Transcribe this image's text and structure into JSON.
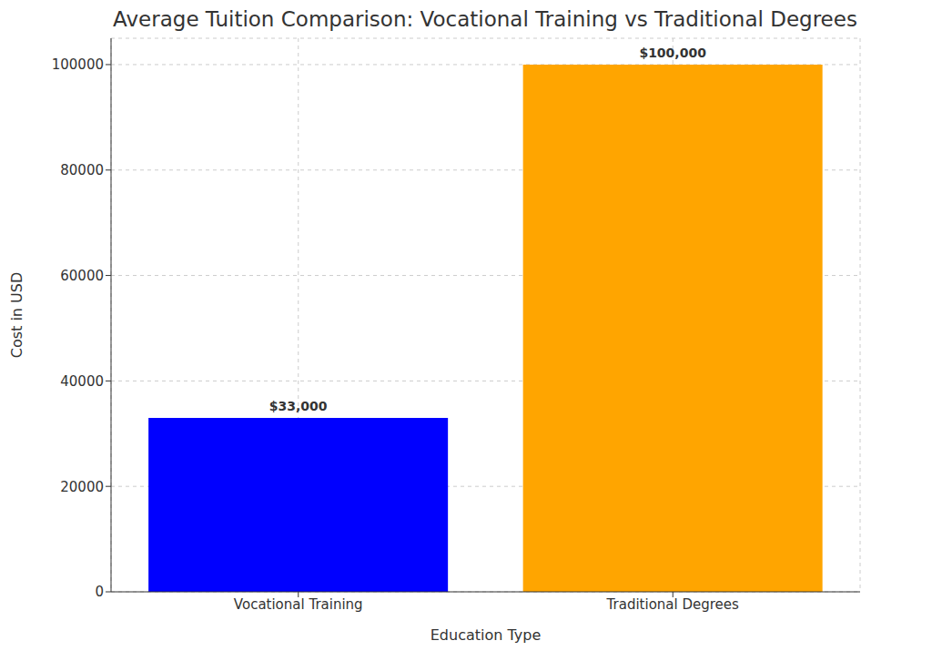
{
  "chart_data": {
    "type": "bar",
    "title": "Average Tuition Comparison: Vocational Training vs Traditional Degrees",
    "x_label": "Education Type",
    "y_label": "Cost in USD",
    "categories": [
      "Vocational Training",
      "Traditional Degrees"
    ],
    "values": [
      33000,
      100000
    ],
    "value_labels": [
      "$33,000",
      "$100,000"
    ],
    "colors": [
      "#0000ff",
      "#ffa500"
    ],
    "ylim": [
      0,
      105000
    ],
    "yticks": [
      0,
      20000,
      40000,
      60000,
      80000,
      100000
    ],
    "grid": true,
    "data_labels": true
  }
}
